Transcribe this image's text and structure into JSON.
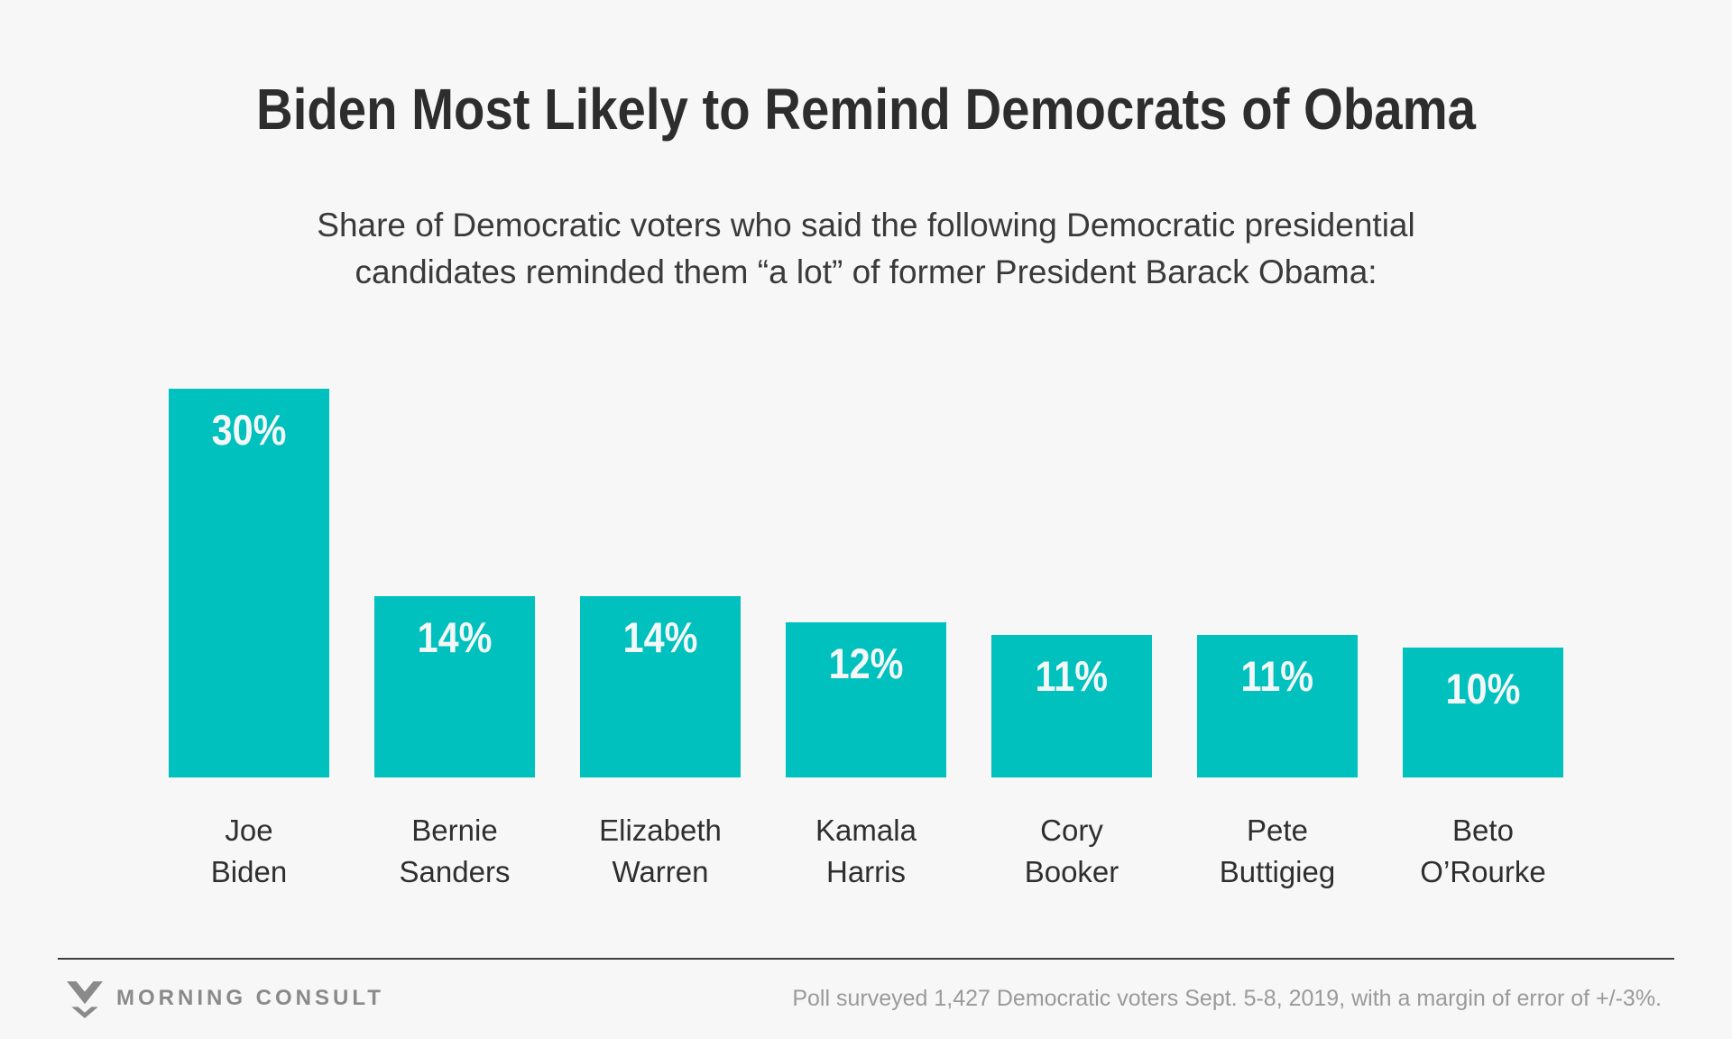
{
  "header": {
    "title": "Biden Most Likely to Remind Democrats of Obama",
    "subtitle_lines": [
      "Share of Democratic voters who said the following Democratic presidential",
      "candidates reminded them “a lot” of former President Barack Obama:"
    ]
  },
  "chart_data": {
    "type": "bar",
    "title": "Biden Most Likely to Remind Democrats of Obama",
    "subtitle": "Share of Democratic voters who said the following Democratic presidential candidates reminded them “a lot” of former President Barack Obama:",
    "categories": [
      "Joe Biden",
      "Bernie Sanders",
      "Elizabeth Warren",
      "Kamala Harris",
      "Cory Booker",
      "Pete Buttigieg",
      "Beto O’Rourke"
    ],
    "category_lines": [
      [
        "Joe",
        "Biden"
      ],
      [
        "Bernie",
        "Sanders"
      ],
      [
        "Elizabeth",
        "Warren"
      ],
      [
        "Kamala",
        "Harris"
      ],
      [
        "Cory",
        "Booker"
      ],
      [
        "Pete",
        "Buttigieg"
      ],
      [
        "Beto",
        "O’Rourke"
      ]
    ],
    "values": [
      30,
      14,
      14,
      12,
      11,
      11,
      10
    ],
    "value_labels": [
      "30%",
      "14%",
      "14%",
      "12%",
      "11%",
      "11%",
      "10%"
    ],
    "unit": "percent",
    "ylim": [
      0,
      30
    ],
    "grid": false,
    "legend": false,
    "axis_labels_visible": false,
    "bar_color": "#00c1bd",
    "value_label_color": "#f4f7f7",
    "background_color": "#f7f7f7"
  },
  "footer": {
    "brand": "MORNING CONSULT",
    "brand_color": "#8a8a8a",
    "note": "Poll surveyed 1,427 Democratic voters Sept. 5-8, 2019, with a margin of error of +/-3%."
  }
}
